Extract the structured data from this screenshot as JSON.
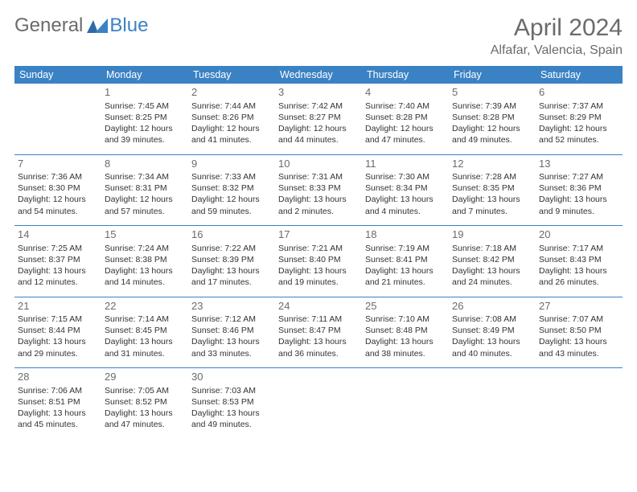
{
  "logo": {
    "general": "General",
    "blue": "Blue"
  },
  "title": "April 2024",
  "location": "Alfafar, Valencia, Spain",
  "colors": {
    "header_bg": "#3b82c4",
    "header_text": "#ffffff",
    "title_gray": "#6b6b6b",
    "body_text": "#333333",
    "row_border": "#3b82c4",
    "page_bg": "#ffffff",
    "logo_blue": "#3b82c4"
  },
  "fonts": {
    "title_size": 30,
    "location_size": 16,
    "header_size": 12.5,
    "cell_size": 10.5,
    "daynum_size": 13
  },
  "day_headers": [
    "Sunday",
    "Monday",
    "Tuesday",
    "Wednesday",
    "Thursday",
    "Friday",
    "Saturday"
  ],
  "weeks": [
    [
      null,
      {
        "n": "1",
        "sr": "7:45 AM",
        "ss": "8:25 PM",
        "dl1": "Daylight: 12 hours",
        "dl2": "and 39 minutes."
      },
      {
        "n": "2",
        "sr": "7:44 AM",
        "ss": "8:26 PM",
        "dl1": "Daylight: 12 hours",
        "dl2": "and 41 minutes."
      },
      {
        "n": "3",
        "sr": "7:42 AM",
        "ss": "8:27 PM",
        "dl1": "Daylight: 12 hours",
        "dl2": "and 44 minutes."
      },
      {
        "n": "4",
        "sr": "7:40 AM",
        "ss": "8:28 PM",
        "dl1": "Daylight: 12 hours",
        "dl2": "and 47 minutes."
      },
      {
        "n": "5",
        "sr": "7:39 AM",
        "ss": "8:28 PM",
        "dl1": "Daylight: 12 hours",
        "dl2": "and 49 minutes."
      },
      {
        "n": "6",
        "sr": "7:37 AM",
        "ss": "8:29 PM",
        "dl1": "Daylight: 12 hours",
        "dl2": "and 52 minutes."
      }
    ],
    [
      {
        "n": "7",
        "sr": "7:36 AM",
        "ss": "8:30 PM",
        "dl1": "Daylight: 12 hours",
        "dl2": "and 54 minutes."
      },
      {
        "n": "8",
        "sr": "7:34 AM",
        "ss": "8:31 PM",
        "dl1": "Daylight: 12 hours",
        "dl2": "and 57 minutes."
      },
      {
        "n": "9",
        "sr": "7:33 AM",
        "ss": "8:32 PM",
        "dl1": "Daylight: 12 hours",
        "dl2": "and 59 minutes."
      },
      {
        "n": "10",
        "sr": "7:31 AM",
        "ss": "8:33 PM",
        "dl1": "Daylight: 13 hours",
        "dl2": "and 2 minutes."
      },
      {
        "n": "11",
        "sr": "7:30 AM",
        "ss": "8:34 PM",
        "dl1": "Daylight: 13 hours",
        "dl2": "and 4 minutes."
      },
      {
        "n": "12",
        "sr": "7:28 AM",
        "ss": "8:35 PM",
        "dl1": "Daylight: 13 hours",
        "dl2": "and 7 minutes."
      },
      {
        "n": "13",
        "sr": "7:27 AM",
        "ss": "8:36 PM",
        "dl1": "Daylight: 13 hours",
        "dl2": "and 9 minutes."
      }
    ],
    [
      {
        "n": "14",
        "sr": "7:25 AM",
        "ss": "8:37 PM",
        "dl1": "Daylight: 13 hours",
        "dl2": "and 12 minutes."
      },
      {
        "n": "15",
        "sr": "7:24 AM",
        "ss": "8:38 PM",
        "dl1": "Daylight: 13 hours",
        "dl2": "and 14 minutes."
      },
      {
        "n": "16",
        "sr": "7:22 AM",
        "ss": "8:39 PM",
        "dl1": "Daylight: 13 hours",
        "dl2": "and 17 minutes."
      },
      {
        "n": "17",
        "sr": "7:21 AM",
        "ss": "8:40 PM",
        "dl1": "Daylight: 13 hours",
        "dl2": "and 19 minutes."
      },
      {
        "n": "18",
        "sr": "7:19 AM",
        "ss": "8:41 PM",
        "dl1": "Daylight: 13 hours",
        "dl2": "and 21 minutes."
      },
      {
        "n": "19",
        "sr": "7:18 AM",
        "ss": "8:42 PM",
        "dl1": "Daylight: 13 hours",
        "dl2": "and 24 minutes."
      },
      {
        "n": "20",
        "sr": "7:17 AM",
        "ss": "8:43 PM",
        "dl1": "Daylight: 13 hours",
        "dl2": "and 26 minutes."
      }
    ],
    [
      {
        "n": "21",
        "sr": "7:15 AM",
        "ss": "8:44 PM",
        "dl1": "Daylight: 13 hours",
        "dl2": "and 29 minutes."
      },
      {
        "n": "22",
        "sr": "7:14 AM",
        "ss": "8:45 PM",
        "dl1": "Daylight: 13 hours",
        "dl2": "and 31 minutes."
      },
      {
        "n": "23",
        "sr": "7:12 AM",
        "ss": "8:46 PM",
        "dl1": "Daylight: 13 hours",
        "dl2": "and 33 minutes."
      },
      {
        "n": "24",
        "sr": "7:11 AM",
        "ss": "8:47 PM",
        "dl1": "Daylight: 13 hours",
        "dl2": "and 36 minutes."
      },
      {
        "n": "25",
        "sr": "7:10 AM",
        "ss": "8:48 PM",
        "dl1": "Daylight: 13 hours",
        "dl2": "and 38 minutes."
      },
      {
        "n": "26",
        "sr": "7:08 AM",
        "ss": "8:49 PM",
        "dl1": "Daylight: 13 hours",
        "dl2": "and 40 minutes."
      },
      {
        "n": "27",
        "sr": "7:07 AM",
        "ss": "8:50 PM",
        "dl1": "Daylight: 13 hours",
        "dl2": "and 43 minutes."
      }
    ],
    [
      {
        "n": "28",
        "sr": "7:06 AM",
        "ss": "8:51 PM",
        "dl1": "Daylight: 13 hours",
        "dl2": "and 45 minutes."
      },
      {
        "n": "29",
        "sr": "7:05 AM",
        "ss": "8:52 PM",
        "dl1": "Daylight: 13 hours",
        "dl2": "and 47 minutes."
      },
      {
        "n": "30",
        "sr": "7:03 AM",
        "ss": "8:53 PM",
        "dl1": "Daylight: 13 hours",
        "dl2": "and 49 minutes."
      },
      null,
      null,
      null,
      null
    ]
  ],
  "labels": {
    "sunrise_prefix": "Sunrise: ",
    "sunset_prefix": "Sunset: "
  }
}
